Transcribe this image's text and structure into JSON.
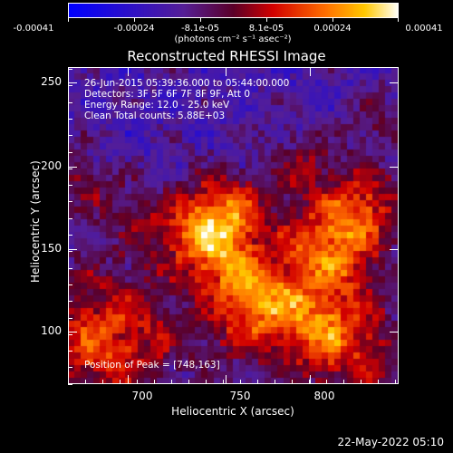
{
  "colorbar": {
    "tick_labels": [
      "-0.00041",
      "-0.00024",
      "-8.1e-05",
      "8.1e-05",
      "0.00024",
      "0.00041"
    ],
    "units": "(photons cm⁻² s⁻¹ asec⁻²)"
  },
  "title": "Reconstructed RHESSI Image",
  "info_lines": [
    "26-Jun-2015 05:39:36.000 to 05:44:00.000",
    "Detectors: 3F 5F 6F 7F 8F 9F, Att 0",
    "Energy Range: 12.0 - 25.0 keV",
    "Clean     Total counts: 5.88E+03"
  ],
  "peak_text": "Position of Peak = [748,163]",
  "axes": {
    "xlabel": "Heliocentric X (arcsec)",
    "ylabel": "Heliocentric Y (arcsec)",
    "xticks": [
      "700",
      "750",
      "800"
    ],
    "yticks": [
      "250",
      "200",
      "150",
      "100"
    ]
  },
  "timestamp": "22-May-2022 05:10"
}
